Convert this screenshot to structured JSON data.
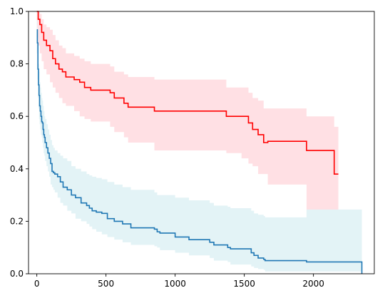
{
  "chart_data": {
    "type": "line",
    "title": "",
    "xlabel": "",
    "ylabel": "",
    "xlim": [
      -60,
      2440
    ],
    "ylim": [
      0,
      1
    ],
    "grid": false,
    "x_ticks": [
      0,
      500,
      1000,
      1500,
      2000
    ],
    "x_tick_labels": [
      "0",
      "500",
      "1000",
      "1500",
      "2000"
    ],
    "y_ticks": [
      0.0,
      0.2,
      0.4,
      0.6,
      0.8,
      1.0
    ],
    "y_tick_labels": [
      "0.0",
      "0.2",
      "0.4",
      "0.6",
      "0.8",
      "1.0"
    ],
    "series": [
      {
        "color": "#ff0000",
        "ci_color": "#ffe0e4",
        "step": true,
        "x": [
          0,
          10,
          22,
          35,
          50,
          70,
          95,
          115,
          135,
          160,
          185,
          210,
          270,
          310,
          345,
          390,
          530,
          560,
          630,
          660,
          850,
          1370,
          1480,
          1530,
          1560,
          1600,
          1640,
          1670,
          1950,
          2150,
          2180
        ],
        "y": [
          1.0,
          0.97,
          0.95,
          0.92,
          0.89,
          0.87,
          0.85,
          0.82,
          0.8,
          0.78,
          0.77,
          0.75,
          0.74,
          0.73,
          0.71,
          0.7,
          0.69,
          0.67,
          0.65,
          0.635,
          0.62,
          0.6,
          0.6,
          0.575,
          0.55,
          0.53,
          0.5,
          0.505,
          0.47,
          0.38,
          0.38
        ],
        "ci_lower": [
          0.97,
          0.9,
          0.87,
          0.84,
          0.81,
          0.78,
          0.76,
          0.73,
          0.71,
          0.69,
          0.67,
          0.65,
          0.64,
          0.62,
          0.6,
          0.59,
          0.58,
          0.56,
          0.54,
          0.52,
          0.5,
          0.47,
          0.46,
          0.44,
          0.42,
          0.41,
          0.38,
          0.38,
          0.34,
          0.19,
          0.19
        ],
        "ci_upper": [
          1.0,
          1.0,
          0.99,
          0.97,
          0.95,
          0.94,
          0.93,
          0.91,
          0.89,
          0.87,
          0.86,
          0.84,
          0.83,
          0.82,
          0.81,
          0.8,
          0.79,
          0.77,
          0.76,
          0.75,
          0.74,
          0.71,
          0.71,
          0.69,
          0.67,
          0.66,
          0.63,
          0.63,
          0.6,
          0.56,
          0.56
        ]
      },
      {
        "color": "#1f77b4",
        "ci_color": "#e3f3f6",
        "step": true,
        "x": [
          0,
          4,
          8,
          12,
          16,
          20,
          25,
          30,
          35,
          40,
          45,
          50,
          55,
          60,
          70,
          80,
          90,
          100,
          110,
          120,
          130,
          150,
          170,
          190,
          220,
          250,
          280,
          320,
          360,
          380,
          400,
          430,
          470,
          510,
          560,
          620,
          680,
          850,
          870,
          890,
          1000,
          1100,
          1250,
          1280,
          1380,
          1400,
          1550,
          1570,
          1600,
          1640,
          1650,
          1950,
          2350
        ],
        "y": [
          0.93,
          0.88,
          0.78,
          0.72,
          0.68,
          0.64,
          0.62,
          0.6,
          0.58,
          0.575,
          0.55,
          0.53,
          0.52,
          0.5,
          0.48,
          0.46,
          0.44,
          0.42,
          0.39,
          0.385,
          0.38,
          0.37,
          0.35,
          0.33,
          0.32,
          0.3,
          0.29,
          0.27,
          0.26,
          0.25,
          0.24,
          0.235,
          0.23,
          0.21,
          0.2,
          0.19,
          0.175,
          0.17,
          0.16,
          0.155,
          0.14,
          0.13,
          0.12,
          0.11,
          0.1,
          0.095,
          0.08,
          0.07,
          0.06,
          0.055,
          0.05,
          0.045,
          0.0
        ],
        "ci_lower": [
          0.9,
          0.84,
          0.74,
          0.67,
          0.63,
          0.59,
          0.57,
          0.55,
          0.53,
          0.52,
          0.5,
          0.48,
          0.46,
          0.45,
          0.43,
          0.41,
          0.39,
          0.37,
          0.34,
          0.33,
          0.32,
          0.31,
          0.29,
          0.27,
          0.26,
          0.24,
          0.23,
          0.21,
          0.2,
          0.19,
          0.18,
          0.17,
          0.16,
          0.15,
          0.14,
          0.13,
          0.12,
          0.11,
          0.105,
          0.1,
          0.09,
          0.08,
          0.07,
          0.06,
          0.05,
          0.045,
          0.035,
          0.028,
          0.022,
          0.018,
          0.015,
          0.009,
          0.009
        ],
        "ci_upper": [
          0.97,
          0.93,
          0.86,
          0.8,
          0.77,
          0.73,
          0.71,
          0.69,
          0.67,
          0.66,
          0.64,
          0.62,
          0.6,
          0.59,
          0.57,
          0.55,
          0.53,
          0.51,
          0.49,
          0.48,
          0.47,
          0.46,
          0.45,
          0.44,
          0.43,
          0.41,
          0.4,
          0.39,
          0.38,
          0.375,
          0.37,
          0.365,
          0.36,
          0.35,
          0.34,
          0.33,
          0.32,
          0.31,
          0.3,
          0.3,
          0.29,
          0.28,
          0.27,
          0.26,
          0.255,
          0.25,
          0.24,
          0.23,
          0.225,
          0.22,
          0.215,
          0.245,
          0.245
        ]
      }
    ]
  }
}
